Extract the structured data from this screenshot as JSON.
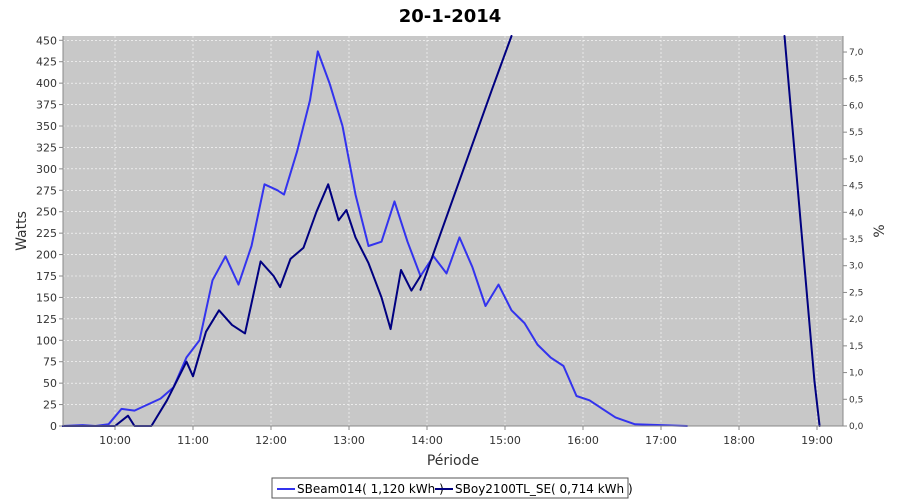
{
  "chart_data": {
    "type": "line",
    "title": "20-1-2014",
    "xlabel": "Période",
    "ylabel": "Watts",
    "y2label": "%",
    "x_domain": [
      "09:20",
      "19:20"
    ],
    "ylim": [
      0,
      455
    ],
    "y2lim": [
      0,
      7.3
    ],
    "x_ticks": [
      "10:00",
      "11:00",
      "12:00",
      "13:00",
      "14:00",
      "15:00",
      "16:00",
      "17:00",
      "18:00",
      "19:00"
    ],
    "y_ticks": [
      0,
      25,
      50,
      75,
      100,
      125,
      150,
      175,
      200,
      225,
      250,
      275,
      300,
      325,
      350,
      375,
      400,
      425,
      450
    ],
    "y2_ticks": [
      "0,0",
      "0,5",
      "1,0",
      "1,5",
      "2,0",
      "2,5",
      "3,0",
      "3,5",
      "4,0",
      "4,5",
      "5,0",
      "5,5",
      "6,0",
      "6,5",
      "7,0"
    ],
    "grid": true,
    "legend_position": "bottom",
    "series": [
      {
        "name": "SBeam014( 1,120 kWh )",
        "color": "#3333ee",
        "axis": "left",
        "points": [
          [
            "09:20",
            0
          ],
          [
            "09:35",
            1
          ],
          [
            "09:45",
            0
          ],
          [
            "09:55",
            2
          ],
          [
            "10:05",
            20
          ],
          [
            "10:15",
            18
          ],
          [
            "10:25",
            25
          ],
          [
            "10:35",
            32
          ],
          [
            "10:45",
            45
          ],
          [
            "10:55",
            80
          ],
          [
            "11:05",
            100
          ],
          [
            "11:15",
            170
          ],
          [
            "11:25",
            198
          ],
          [
            "11:35",
            165
          ],
          [
            "11:45",
            210
          ],
          [
            "11:55",
            282
          ],
          [
            "12:05",
            275
          ],
          [
            "12:10",
            270
          ],
          [
            "12:20",
            320
          ],
          [
            "12:30",
            380
          ],
          [
            "12:36",
            437
          ],
          [
            "12:45",
            400
          ],
          [
            "12:55",
            350
          ],
          [
            "13:05",
            270
          ],
          [
            "13:15",
            210
          ],
          [
            "13:25",
            215
          ],
          [
            "13:35",
            262
          ],
          [
            "13:45",
            215
          ],
          [
            "13:55",
            175
          ],
          [
            "14:05",
            198
          ],
          [
            "14:15",
            178
          ],
          [
            "14:25",
            220
          ],
          [
            "14:35",
            185
          ],
          [
            "14:45",
            140
          ],
          [
            "14:55",
            165
          ],
          [
            "15:05",
            135
          ],
          [
            "15:15",
            120
          ],
          [
            "15:25",
            95
          ],
          [
            "15:35",
            80
          ],
          [
            "15:45",
            70
          ],
          [
            "15:55",
            35
          ],
          [
            "16:05",
            30
          ],
          [
            "16:15",
            20
          ],
          [
            "16:25",
            10
          ],
          [
            "16:40",
            2
          ],
          [
            "17:00",
            1
          ],
          [
            "17:20",
            0
          ]
        ]
      },
      {
        "name": "SBoy2100TL_SE( 0,714 kWh )",
        "color": "#000080",
        "axis": "left",
        "points": [
          [
            "09:20",
            0
          ],
          [
            "10:00",
            0
          ],
          [
            "10:10",
            12
          ],
          [
            "10:15",
            0
          ],
          [
            "10:28",
            0
          ],
          [
            "10:40",
            30
          ],
          [
            "10:55",
            75
          ],
          [
            "11:00",
            58
          ],
          [
            "11:10",
            110
          ],
          [
            "11:20",
            135
          ],
          [
            "11:30",
            118
          ],
          [
            "11:40",
            108
          ],
          [
            "11:52",
            192
          ],
          [
            "12:02",
            175
          ],
          [
            "12:07",
            162
          ],
          [
            "12:15",
            195
          ],
          [
            "12:25",
            208
          ],
          [
            "12:35",
            250
          ],
          [
            "12:44",
            282
          ],
          [
            "12:52",
            240
          ],
          [
            "12:58",
            252
          ],
          [
            "13:05",
            220
          ],
          [
            "13:15",
            190
          ],
          [
            "13:25",
            150
          ],
          [
            "13:32",
            113
          ],
          [
            "13:40",
            182
          ],
          [
            "13:48",
            158
          ],
          [
            "13:55",
            175
          ]
        ]
      },
      {
        "name": "",
        "color": "#000080",
        "axis": "right",
        "points": [
          [
            "13:55",
            2.55
          ],
          [
            "14:50",
            6.3
          ],
          [
            "15:05",
            7.3
          ]
        ]
      },
      {
        "name": "",
        "color": "#000080",
        "axis": "right",
        "points": [
          [
            "18:35",
            7.3
          ],
          [
            "18:58",
            0.85
          ],
          [
            "19:02",
            0
          ]
        ]
      }
    ]
  }
}
